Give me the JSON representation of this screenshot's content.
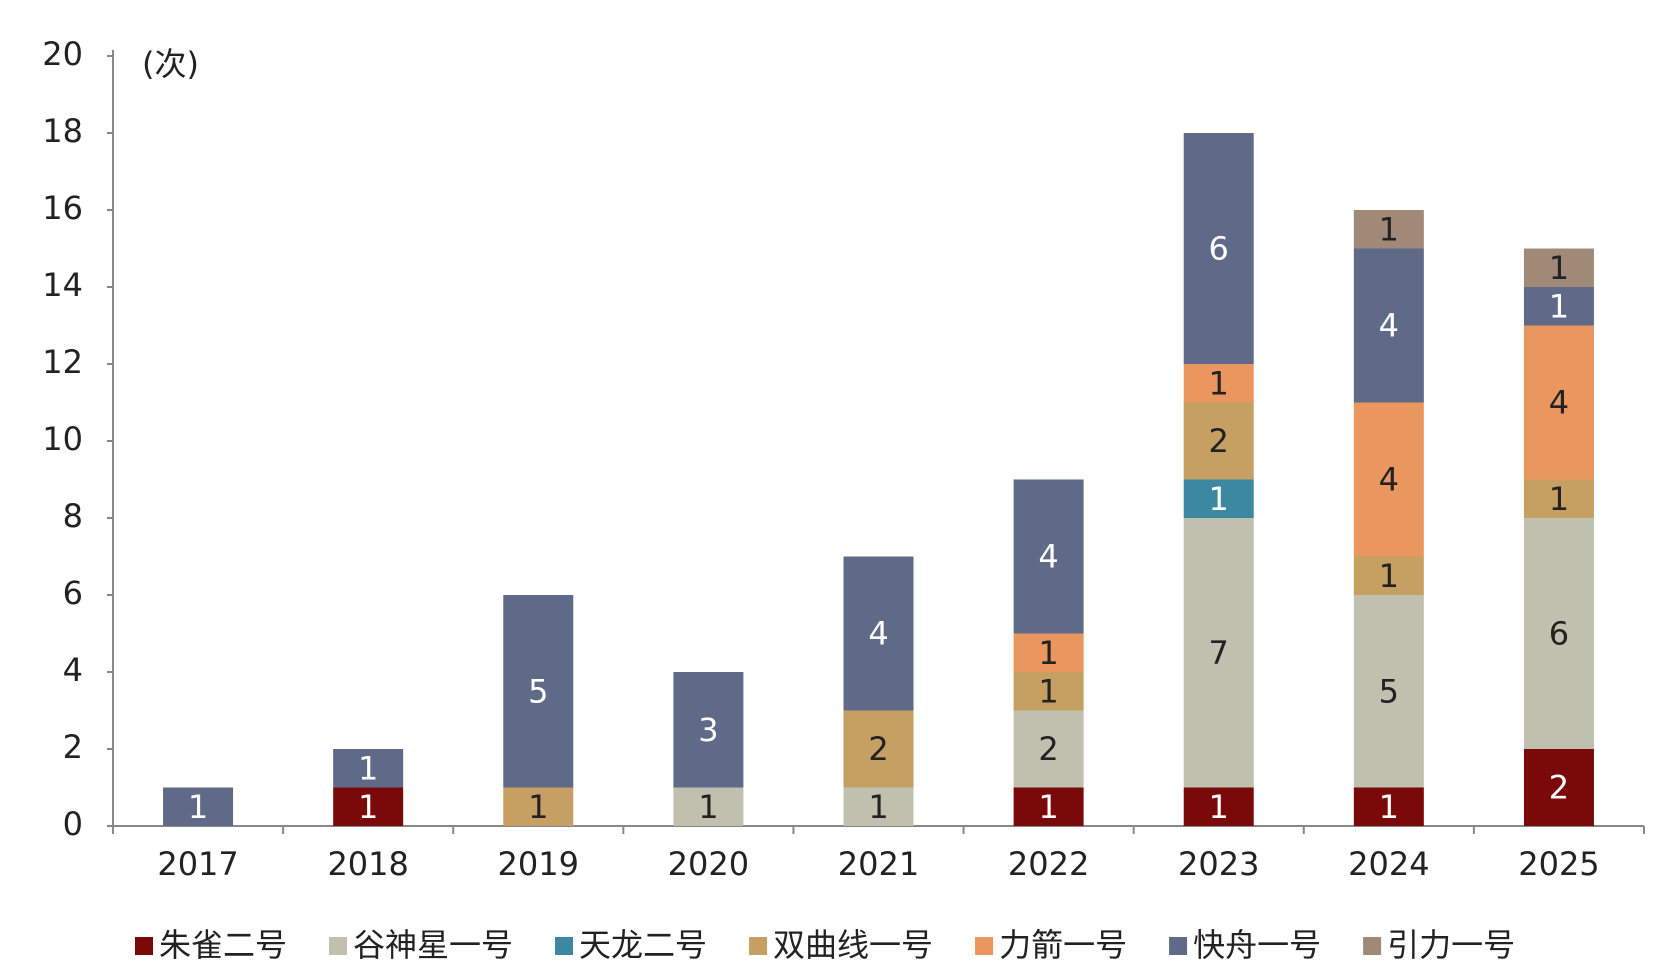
{
  "chart_data": {
    "type": "bar",
    "stacked": true,
    "y_unit": "(次)",
    "categories": [
      "2017",
      "2018",
      "2019",
      "2020",
      "2021",
      "2022",
      "2023",
      "2024",
      "2025"
    ],
    "series": [
      {
        "name": "朱雀二号",
        "color": "#7a0a0a",
        "values": [
          null,
          1,
          null,
          null,
          null,
          1,
          1,
          1,
          2
        ]
      },
      {
        "name": "谷神星一号",
        "color": "#bfc0ae",
        "values": [
          null,
          null,
          null,
          1,
          1,
          2,
          7,
          5,
          6
        ]
      },
      {
        "name": "天龙二号",
        "color": "#3b88a0",
        "values": [
          null,
          null,
          null,
          null,
          null,
          null,
          1,
          null,
          null
        ]
      },
      {
        "name": "双曲线一号",
        "color": "#c6a063",
        "values": [
          null,
          null,
          1,
          null,
          2,
          1,
          2,
          1,
          1
        ]
      },
      {
        "name": "力箭一号",
        "color": "#e9965f",
        "values": [
          null,
          null,
          null,
          null,
          null,
          1,
          1,
          4,
          4
        ]
      },
      {
        "name": "快舟一号",
        "color": "#5f6a89",
        "values": [
          1,
          1,
          5,
          3,
          4,
          4,
          6,
          4,
          1
        ]
      },
      {
        "name": "引力一号",
        "color": "#a08a77",
        "values": [
          null,
          null,
          null,
          null,
          null,
          null,
          null,
          1,
          1
        ]
      }
    ],
    "ylim": [
      0,
      20
    ],
    "yticks": [
      0,
      2,
      4,
      6,
      8,
      10,
      12,
      14,
      16,
      18,
      20
    ],
    "grid": false,
    "legend": "bottom"
  }
}
